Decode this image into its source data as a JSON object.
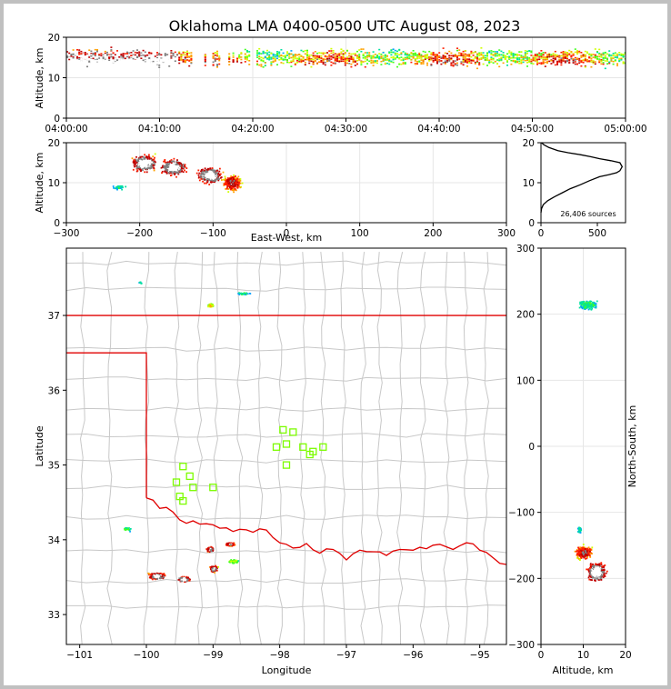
{
  "title": "Oklahoma LMA 0400-0500 UTC August 08, 2023",
  "sources_label": "26,406 sources",
  "colors": {
    "state_border": "#e00000",
    "county_lines": "#c8c8c8",
    "station_marker": "#7cfc00",
    "axis": "#000000",
    "frame": "#c0c0c0"
  },
  "chart_data": [
    {
      "type": "heatmap",
      "panel": "altitude-time",
      "ylabel": "Altitude, km",
      "xlim": [
        "04:00:00",
        "05:00:00"
      ],
      "ylim": [
        0,
        20
      ],
      "x_ticks": [
        "04:00:00",
        "04:10:00",
        "04:20:00",
        "04:30:00",
        "04:40:00",
        "04:50:00",
        "05:00:00"
      ],
      "y_ticks": [
        "0",
        "10",
        "20"
      ],
      "grid": true
    },
    {
      "type": "heatmap",
      "panel": "altitude-east-west",
      "xlabel": "East-West, km",
      "ylabel": "Altitude, km",
      "xlim": [
        -300,
        300
      ],
      "ylim": [
        0,
        20
      ],
      "x_ticks": [
        "−300",
        "−200",
        "−100",
        "0",
        "100",
        "200",
        "300"
      ],
      "y_ticks": [
        "0",
        "10",
        "20"
      ],
      "clusters": [
        {
          "x_km": -195,
          "alt_km": 15
        },
        {
          "x_km": -155,
          "alt_km": 14
        },
        {
          "x_km": -105,
          "alt_km": 12
        },
        {
          "x_km": -75,
          "alt_km": 10
        }
      ],
      "grid": true
    },
    {
      "type": "line",
      "panel": "altitude-histogram",
      "xlim": [
        0,
        750
      ],
      "ylim": [
        0,
        20
      ],
      "x_ticks": [
        "0",
        "500"
      ],
      "y_ticks": [
        "0",
        "10",
        "20"
      ],
      "x": [
        0,
        5,
        20,
        60,
        120,
        190,
        260,
        350,
        430,
        520,
        600,
        670,
        700,
        720,
        700,
        620,
        520,
        440,
        350,
        240,
        150,
        70,
        25,
        5
      ],
      "y": [
        2.5,
        3.5,
        4.5,
        5.5,
        6.5,
        7.5,
        8.5,
        9.5,
        10.5,
        11.5,
        12.0,
        12.5,
        13.0,
        14.0,
        15.0,
        15.5,
        16.0,
        16.5,
        17.0,
        17.5,
        18.0,
        18.8,
        19.5,
        20.0
      ]
    },
    {
      "type": "scatter",
      "panel": "map",
      "xlabel": "Longitude",
      "ylabel": "Latitude",
      "xlim": [
        -101.2,
        -94.6
      ],
      "ylim": [
        32.6,
        37.9
      ],
      "x_ticks": [
        "−101",
        "−100",
        "−99",
        "−98",
        "−97",
        "−96",
        "−95"
      ],
      "y_ticks": [
        "33",
        "34",
        "35",
        "36",
        "37"
      ],
      "stations": {
        "lon": [
          -99.45,
          -99.35,
          -99.55,
          -99.3,
          -99.5,
          -99.45,
          -99.0,
          -97.95,
          -97.8,
          -97.9,
          -98.05,
          -97.65,
          -97.5,
          -97.35,
          -97.55,
          -97.9
        ],
        "lat": [
          34.98,
          34.85,
          34.77,
          34.7,
          34.58,
          34.52,
          34.7,
          35.47,
          35.44,
          35.28,
          35.24,
          35.24,
          35.18,
          35.24,
          35.14,
          35.0
        ]
      }
    },
    {
      "type": "heatmap",
      "panel": "north-south-altitude",
      "xlabel": "Altitude, km",
      "ylabel": "North-South, km",
      "xlim": [
        0,
        20
      ],
      "ylim": [
        -300,
        300
      ],
      "x_ticks": [
        "0",
        "10",
        "20"
      ],
      "y_ticks": [
        "−300",
        "−200",
        "−100",
        "0",
        "100",
        "200",
        "300"
      ],
      "grid": true
    }
  ]
}
